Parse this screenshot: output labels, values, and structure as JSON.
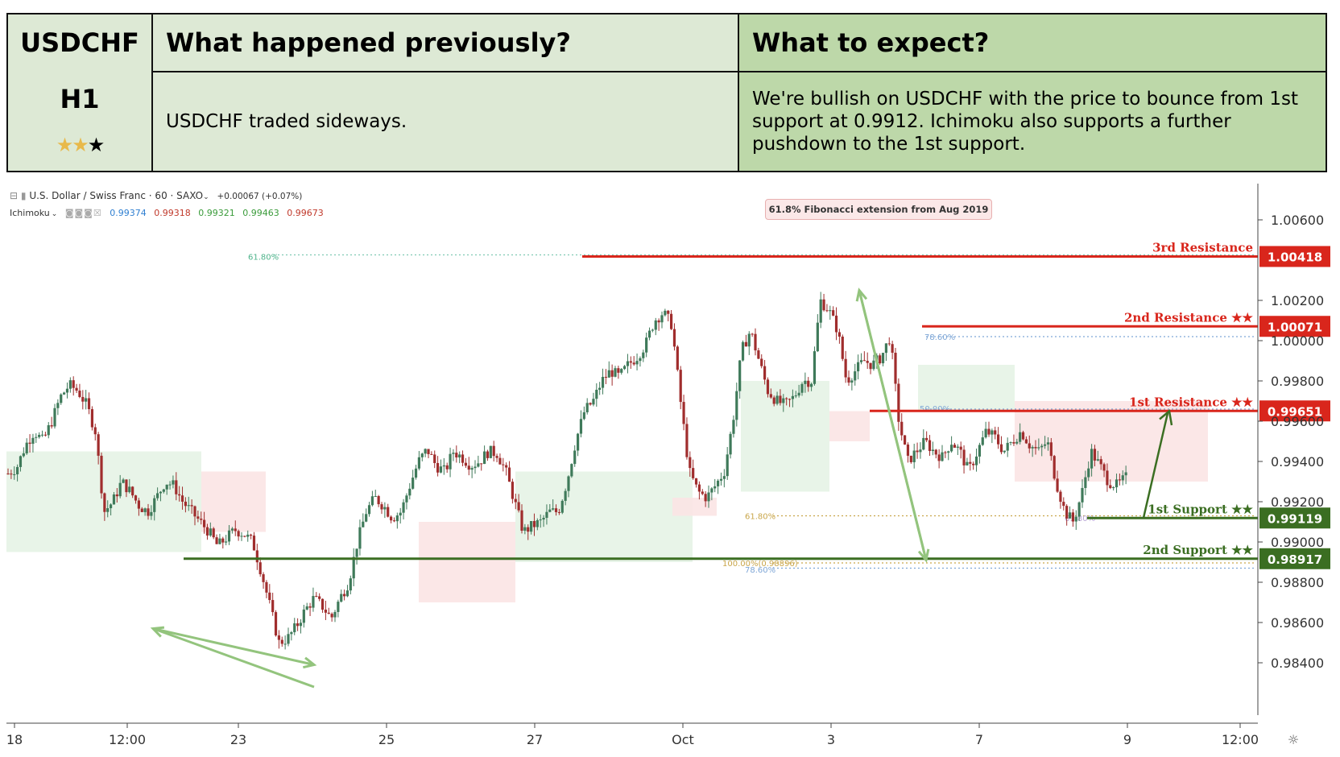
{
  "header": {
    "symbol": "USDCHF",
    "timeframe": "H1",
    "rating_on": "★★",
    "rating_off": "★",
    "col1_title": "What happened previously?",
    "col2_title": "What to expect?",
    "col1_body": "USDCHF traded sideways.",
    "col2_body": "We're bullish on USDCHF with the price to bounce from 1st support at 0.9912. Ichimoku also supports a further pushdown to the 1st support."
  },
  "legend": {
    "instrument": "U.S. Dollar / Swiss Franc · 60 · SAXO",
    "change": "+0.00067 (+0.07%)",
    "indicator": "Ichimoku",
    "ichimoku_values": [
      "0.99374",
      "0.99318",
      "0.99321",
      "0.99463",
      "0.99673"
    ],
    "ichimoku_colors": [
      "#2f7fd1",
      "#c0392b",
      "#3a9b3a",
      "#3a9b3a",
      "#c0392b"
    ]
  },
  "fib_note": "61.8% Fibonacci extension from Aug 2019",
  "colors": {
    "resistance": "#d9261c",
    "support": "#3b6e22",
    "arrow": "#93c47d",
    "bull_candle": "#3f7a5a",
    "bear_candle": "#a02d2d",
    "cloud_green": "#e6f3e6",
    "cloud_red": "#fbe4e4"
  },
  "chart_data": {
    "type": "candlestick",
    "ylim": [
      0.983,
      1.007
    ],
    "y_ticks": [
      "1.00600",
      "1.00200",
      "1.00000",
      "0.99800",
      "0.99600",
      "0.99400",
      "0.99200",
      "0.99000",
      "0.98800",
      "0.98600",
      "0.98400"
    ],
    "x_tick_labels": [
      "18",
      "12:00",
      "23",
      "25",
      "27",
      "Oct",
      "3",
      "7",
      "9",
      "12:00"
    ],
    "levels": [
      {
        "name": "3rd Resistance",
        "value": 1.00418,
        "label": "1.00418",
        "kind": "resistance"
      },
      {
        "name": "2nd Resistance ★★",
        "value": 1.00071,
        "label": "1.00071",
        "kind": "resistance"
      },
      {
        "name": "1st Resistance ★★",
        "value": 0.99651,
        "label": "0.99651",
        "kind": "resistance"
      },
      {
        "name": "1st Support ★★",
        "value": 0.99119,
        "label": "0.99119",
        "kind": "support"
      },
      {
        "name": "2nd Support ★★",
        "value": 0.98917,
        "label": "0.98917",
        "kind": "support"
      }
    ],
    "fib_labels": [
      "61.80%",
      "61.80%",
      "78.60%",
      "50.00%",
      "61.80%",
      "100.00%(0.98896)",
      "78.60%"
    ],
    "price_path": [
      [
        0.9934,
        0.9937,
        0.9948,
        0.9955,
        0.995,
        0.996,
        0.9972,
        0.9978,
        0.9975,
        0.9968,
        0.9955
      ],
      [
        0.9915,
        0.992,
        0.993,
        0.9925,
        0.9918,
        0.9915,
        0.9922,
        0.993,
        0.9928,
        0.992,
        0.9915,
        0.991
      ],
      [
        0.9905,
        0.9898,
        0.9902,
        0.9906,
        0.9904,
        0.99
      ],
      [
        0.9885,
        0.9868,
        0.985,
        0.9852,
        0.9858,
        0.9866,
        0.9872,
        0.9868,
        0.9862,
        0.9872,
        0.988
      ],
      [
        0.99,
        0.9915,
        0.9922,
        0.9918,
        0.9912,
        0.9915
      ],
      [
        0.9928,
        0.994,
        0.9946,
        0.9938,
        0.9935,
        0.9945,
        0.9942,
        0.9938,
        0.994,
        0.9945,
        0.9944
      ],
      [
        0.9935,
        0.992,
        0.9905,
        0.9908,
        0.991,
        0.9915,
        0.9915
      ],
      [
        0.993,
        0.995,
        0.9965,
        0.997,
        0.998,
        0.9985,
        0.9982,
        0.9988
      ],
      [
        0.9992,
        0.9998,
        1.001,
        1.0014,
        1.0008
      ],
      [
        0.997,
        0.9935,
        0.9925,
        0.9922,
        0.9928,
        0.9935
      ],
      [
        0.996,
        0.9995,
        1.0005,
        0.999,
        0.9975,
        0.997,
        0.9968,
        0.9972
      ],
      [
        0.998,
        0.998,
        1.002,
        1.0015,
        1.0005
      ],
      [
        0.998,
        0.9985,
        0.999,
        0.9988,
        0.9992,
        1.0002
      ],
      [
        0.996,
        0.994,
        0.9945,
        0.995,
        0.9945,
        0.9942,
        0.995,
        0.9945,
        0.9935,
        0.9945,
        0.9955,
        0.9952,
        0.9945,
        0.995,
        0.9955,
        0.9948,
        0.9945,
        0.995
      ],
      [
        0.993,
        0.9915,
        0.991,
        0.9925,
        0.9945,
        0.9938,
        0.993,
        0.9928,
        0.9932
      ]
    ]
  }
}
